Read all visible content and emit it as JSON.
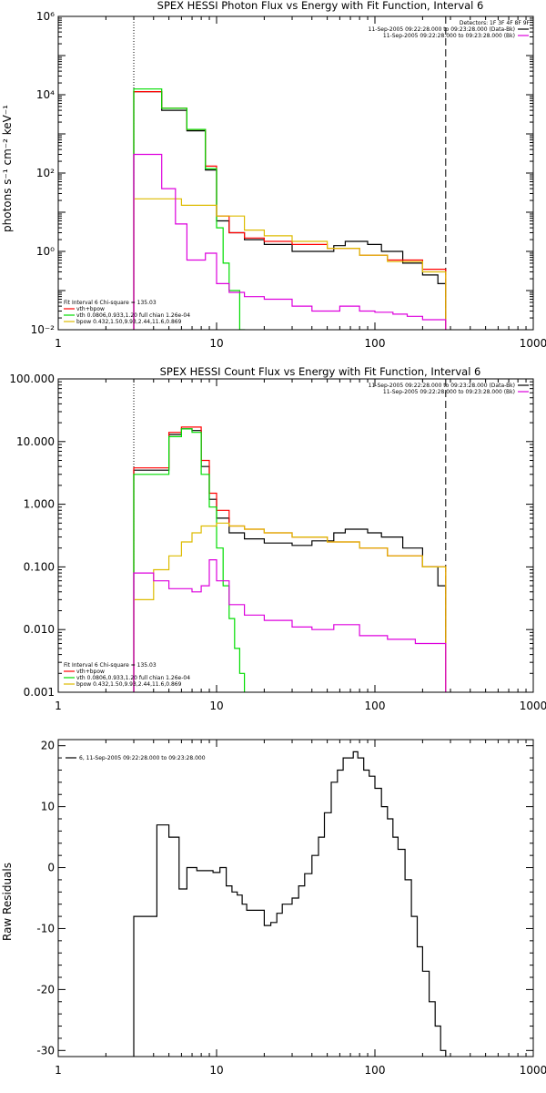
{
  "colors": {
    "data": "#000000",
    "model": "#ff0000",
    "vth": "#00dd00",
    "bpow": "#ddbb00",
    "bkg": "#dd00dd"
  },
  "chart_data": [
    {
      "type": "line",
      "title": "SPEX HESSI Photon Flux vs Energy with Fit Function, Interval 6",
      "xlabel": "",
      "ylabel": "photons s⁻¹ cm⁻² keV⁻¹",
      "xscale": "log",
      "yscale": "log",
      "xlim": [
        1,
        1000
      ],
      "ylim": [
        0.01,
        1000000
      ],
      "xticklabels": [
        "1",
        "10",
        "100",
        "1000"
      ],
      "yticks": [
        0.01,
        1,
        100,
        10000,
        1000000
      ],
      "yticklabels": [
        "10⁻²",
        "10⁰",
        "10²",
        "10⁴",
        "10⁶"
      ],
      "fit_range": [
        3,
        280
      ],
      "legend_tr": {
        "header": "Detectors: 1F 3F 4F 8F 9F",
        "lines": [
          "11-Sep-2005 09:22:28.000 to 09:23:28.000 (Data-Bk)",
          "11-Sep-2005 09:22:28.000 to 09:23:28.000 (Bk)"
        ]
      },
      "legend_bl": {
        "header": "Fit Interval  6    Chi-square = 135.03",
        "lines": [
          "vth+bpow",
          "vth 0.0806,0.933,1.20  full chian 1.26e-04",
          "bpow 0.432,1.50,9.93,2.44,11.6,0.869"
        ]
      },
      "series": [
        {
          "name": "11-Sep-2005 09:22:28.000 to 09:23:28.000 (Data-Bk)",
          "color": "#000000",
          "x": [
            3.0,
            4.5,
            6.5,
            8.5,
            10,
            12,
            15,
            20,
            30,
            40,
            55,
            65,
            75,
            90,
            110,
            150,
            200,
            250,
            280
          ],
          "y": [
            12000,
            4000,
            1200,
            120,
            6,
            3,
            2,
            1.5,
            1.0,
            1.0,
            1.4,
            1.8,
            1.8,
            1.5,
            1.0,
            0.5,
            0.25,
            0.15,
            0.1
          ]
        },
        {
          "name": "",
          "color": "#ff0000",
          "x": [
            3.0,
            4.5,
            6.5,
            8.5,
            10,
            12,
            15,
            20,
            30,
            50,
            80,
            120,
            200,
            280
          ],
          "y": [
            12000,
            4500,
            1300,
            150,
            8,
            3,
            2.2,
            1.8,
            1.5,
            1.2,
            0.8,
            0.6,
            0.35,
            0.15
          ]
        },
        {
          "name": "",
          "color": "#00dd00",
          "x": [
            3.0,
            4.5,
            6.5,
            8.5,
            10,
            11,
            12,
            14,
            15
          ],
          "y": [
            14000,
            4500,
            1300,
            130,
            4,
            0.5,
            0.1,
            0.01,
            0.005
          ]
        },
        {
          "name": "",
          "color": "#ddbb00",
          "x": [
            3.0,
            6,
            10,
            15,
            20,
            30,
            50,
            80,
            120,
            200,
            280
          ],
          "y": [
            22,
            15,
            8,
            3.5,
            2.5,
            1.8,
            1.2,
            0.8,
            0.55,
            0.3,
            0.18
          ]
        },
        {
          "name": "11-Sep-2005 09:22:28.000 to 09:23:28.000 (Bk)",
          "color": "#dd00dd",
          "x": [
            3.0,
            4.5,
            5.5,
            6.5,
            8.5,
            10,
            12,
            15,
            20,
            30,
            40,
            60,
            80,
            100,
            130,
            160,
            200,
            280
          ],
          "y": [
            300,
            40,
            5,
            0.6,
            0.9,
            0.15,
            0.09,
            0.07,
            0.06,
            0.04,
            0.03,
            0.04,
            0.03,
            0.028,
            0.025,
            0.022,
            0.018,
            0.012
          ]
        }
      ]
    },
    {
      "type": "line",
      "title": "SPEX HESSI Count Flux vs Energy with Fit Function, Interval 6",
      "xlabel": "",
      "ylabel": "",
      "xscale": "log",
      "yscale": "log",
      "xlim": [
        1,
        1000
      ],
      "ylim": [
        0.001,
        100
      ],
      "xticklabels": [
        "1",
        "10",
        "100",
        "1000"
      ],
      "yticks": [
        0.001,
        0.01,
        0.1,
        1,
        10,
        100
      ],
      "yticklabels": [
        "0.001",
        "0.010",
        "0.100",
        "1.000",
        "10.000",
        "100.000"
      ],
      "fit_range": [
        3,
        280
      ],
      "legend_tr": {
        "header": "",
        "lines": [
          "11-Sep-2005 09:22:28.000 to 09:23:28.000 (Data-Bk)",
          "11-Sep-2005 09:22:28.000 to 09:23:28.000 (Bk)"
        ]
      },
      "legend_bl": {
        "header": "Fit Interval  6    Chi-square = 135.03",
        "lines": [
          "vth+bpow",
          "vth 0.0806,0.933,1.20  full chian 1.26e-04",
          "bpow 0.432,1.50,9.93,2.44,11.6,0.869"
        ]
      },
      "series": [
        {
          "name": "11-Sep-2005 09:22:28.000 to 09:23:28.000 (Data-Bk)",
          "color": "#000000",
          "x": [
            3.0,
            4.0,
            5.0,
            6.0,
            7.0,
            8.0,
            9.0,
            10,
            12,
            15,
            20,
            30,
            40,
            55,
            65,
            75,
            90,
            110,
            150,
            200,
            250,
            280
          ],
          "y": [
            3.5,
            3.5,
            13,
            16,
            15,
            4,
            1.2,
            0.6,
            0.35,
            0.28,
            0.24,
            0.22,
            0.26,
            0.35,
            0.4,
            0.4,
            0.35,
            0.3,
            0.2,
            0.1,
            0.05,
            0.03
          ]
        },
        {
          "name": "",
          "color": "#ff0000",
          "x": [
            3.0,
            4.0,
            5.0,
            6.0,
            7.0,
            8.0,
            9.0,
            10,
            12,
            15,
            20,
            30,
            50,
            80,
            120,
            200,
            280
          ],
          "y": [
            3.8,
            3.8,
            14,
            17,
            17,
            5,
            1.5,
            0.8,
            0.45,
            0.4,
            0.35,
            0.3,
            0.25,
            0.2,
            0.15,
            0.1,
            0.06
          ]
        },
        {
          "name": "",
          "color": "#00dd00",
          "x": [
            3.0,
            4.0,
            5.0,
            6.0,
            7.0,
            8.0,
            9.0,
            10,
            11,
            12,
            13,
            14,
            15
          ],
          "y": [
            3.0,
            3.0,
            12,
            16,
            14,
            3,
            0.9,
            0.2,
            0.05,
            0.015,
            0.005,
            0.002,
            0.0008
          ]
        },
        {
          "name": "",
          "color": "#ddbb00",
          "x": [
            3.0,
            4.0,
            5.0,
            6.0,
            7.0,
            8.0,
            10,
            12,
            15,
            20,
            30,
            50,
            80,
            120,
            200,
            280
          ],
          "y": [
            0.03,
            0.09,
            0.15,
            0.25,
            0.35,
            0.45,
            0.5,
            0.45,
            0.4,
            0.35,
            0.3,
            0.25,
            0.2,
            0.15,
            0.1,
            0.06
          ]
        },
        {
          "name": "11-Sep-2005 09:22:28.000 to 09:23:28.000 (Bk)",
          "color": "#dd00dd",
          "x": [
            3.0,
            4.0,
            5.0,
            7.0,
            8.0,
            9.0,
            10,
            12,
            15,
            20,
            30,
            40,
            55,
            80,
            120,
            180,
            280
          ],
          "y": [
            0.08,
            0.06,
            0.045,
            0.04,
            0.05,
            0.13,
            0.06,
            0.025,
            0.017,
            0.014,
            0.011,
            0.01,
            0.012,
            0.008,
            0.007,
            0.006,
            0.005
          ]
        }
      ]
    },
    {
      "type": "line",
      "title": "",
      "xlabel": "",
      "ylabel": "Raw Residuals",
      "xscale": "log",
      "yscale": "linear",
      "xlim": [
        1,
        1000
      ],
      "ylim": [
        -31,
        21
      ],
      "xticklabels": [
        "1",
        "10",
        "100",
        "1000"
      ],
      "yticks": [
        -30,
        -20,
        -10,
        0,
        10,
        20
      ],
      "yticklabels": [
        "-30",
        "-20",
        "-10",
        "0",
        "10",
        "20"
      ],
      "legend_tl": {
        "lines": [
          "6, 11-Sep-2005 09:22:28.000 to 09:23:28.000"
        ]
      },
      "series": [
        {
          "name": "6, 11-Sep-2005 09:22:28.000 to 09:23:28.000",
          "color": "#000000",
          "x": [
            3.0,
            4.2,
            5.0,
            5.8,
            6.5,
            7.5,
            8.5,
            9.5,
            10.5,
            11.5,
            12.5,
            13.5,
            14.5,
            15.5,
            17,
            18.5,
            20,
            22,
            24,
            26,
            28,
            30,
            33,
            36,
            40,
            44,
            48,
            53,
            58,
            63,
            68,
            73,
            78,
            85,
            92,
            100,
            110,
            120,
            130,
            140,
            155,
            170,
            185,
            200,
            220,
            240,
            260,
            280
          ],
          "y": [
            -8,
            7,
            5,
            -3.5,
            0,
            -0.5,
            -0.5,
            -0.8,
            0,
            -3,
            -4,
            -4.5,
            -6,
            -7,
            -7,
            -7,
            -9.5,
            -9,
            -7.5,
            -6,
            -6,
            -5,
            -3,
            -1,
            2,
            5,
            9,
            14,
            16,
            18,
            18,
            19,
            18,
            16,
            15,
            13,
            10,
            8,
            5,
            3,
            -2,
            -8,
            -13,
            -17,
            -22,
            -26,
            -30,
            -31
          ]
        }
      ]
    }
  ]
}
